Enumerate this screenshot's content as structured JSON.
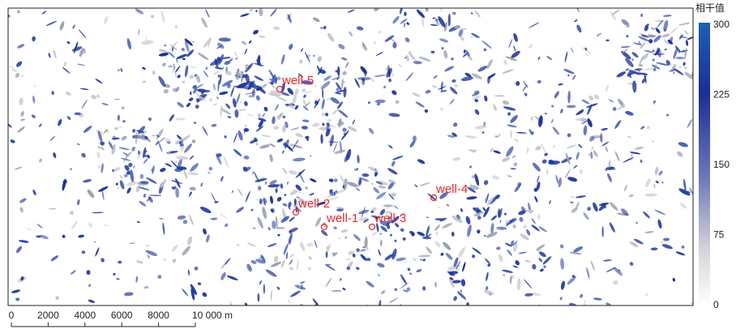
{
  "map": {
    "wells": [
      {
        "label": "well-5"
      },
      {
        "label": "well-2"
      },
      {
        "label": "well-1"
      },
      {
        "label": "well-3"
      },
      {
        "label": "well-4"
      }
    ],
    "colorbar": {
      "title": "相干值",
      "ticks": [
        0,
        75,
        150,
        225,
        300
      ]
    },
    "scalebar": {
      "ticks": [
        0,
        2000,
        4000,
        6000,
        8000,
        {
          "value": 10000,
          "label": "10 000 m"
        }
      ]
    }
  }
}
